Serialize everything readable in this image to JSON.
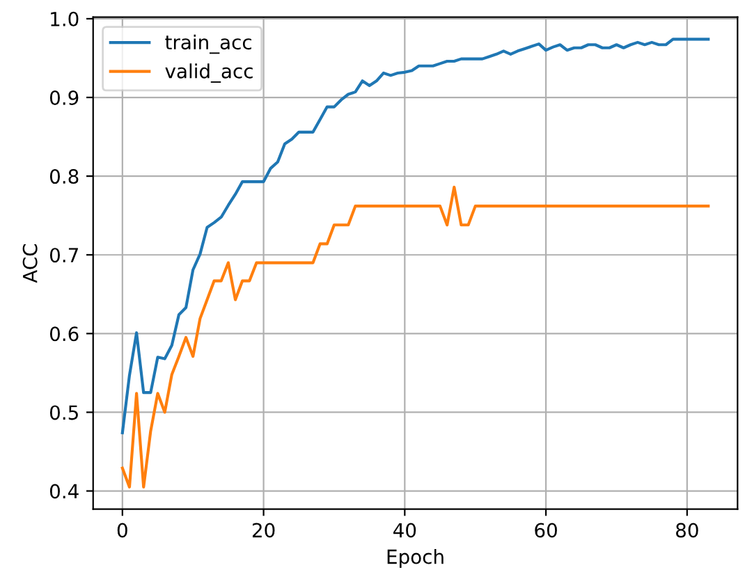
{
  "chart_data": {
    "type": "line",
    "xlabel": "Epoch",
    "ylabel": "ACC",
    "x": [
      0,
      1,
      2,
      3,
      4,
      5,
      6,
      7,
      8,
      9,
      10,
      11,
      12,
      13,
      14,
      15,
      16,
      17,
      18,
      19,
      20,
      21,
      22,
      23,
      24,
      25,
      26,
      27,
      28,
      29,
      30,
      31,
      32,
      33,
      34,
      35,
      36,
      37,
      38,
      39,
      40,
      41,
      42,
      43,
      44,
      45,
      46,
      47,
      48,
      49,
      50,
      51,
      52,
      53,
      54,
      55,
      56,
      57,
      58,
      59,
      60,
      61,
      62,
      63,
      64,
      65,
      66,
      67,
      68,
      69,
      70,
      71,
      72,
      73,
      74,
      75,
      76,
      77,
      78,
      79,
      80,
      81,
      82,
      83
    ],
    "series": [
      {
        "name": "train_acc",
        "color": "#1f77b4",
        "values": [
          0.474,
          0.547,
          0.601,
          0.525,
          0.525,
          0.57,
          0.568,
          0.585,
          0.624,
          0.633,
          0.681,
          0.701,
          0.735,
          0.741,
          0.748,
          0.763,
          0.777,
          0.793,
          0.793,
          0.793,
          0.793,
          0.81,
          0.818,
          0.841,
          0.847,
          0.856,
          0.856,
          0.856,
          0.872,
          0.888,
          0.888,
          0.897,
          0.904,
          0.907,
          0.921,
          0.915,
          0.921,
          0.931,
          0.928,
          0.931,
          0.932,
          0.934,
          0.94,
          0.94,
          0.94,
          0.943,
          0.946,
          0.946,
          0.949,
          0.949,
          0.949,
          0.949,
          0.952,
          0.955,
          0.959,
          0.955,
          0.959,
          0.962,
          0.965,
          0.968,
          0.96,
          0.964,
          0.967,
          0.96,
          0.963,
          0.963,
          0.967,
          0.967,
          0.963,
          0.963,
          0.967,
          0.963,
          0.967,
          0.97,
          0.967,
          0.97,
          0.967,
          0.967,
          0.974,
          0.974,
          0.974,
          0.974,
          0.974,
          0.974
        ]
      },
      {
        "name": "valid_acc",
        "color": "#ff7f0e",
        "values": [
          0.429,
          0.405,
          0.524,
          0.405,
          0.476,
          0.524,
          0.5,
          0.548,
          0.571,
          0.595,
          0.571,
          0.619,
          0.643,
          0.667,
          0.667,
          0.69,
          0.643,
          0.667,
          0.667,
          0.69,
          0.69,
          0.69,
          0.69,
          0.69,
          0.69,
          0.69,
          0.69,
          0.69,
          0.714,
          0.714,
          0.738,
          0.738,
          0.738,
          0.762,
          0.762,
          0.762,
          0.762,
          0.762,
          0.762,
          0.762,
          0.762,
          0.762,
          0.762,
          0.762,
          0.762,
          0.762,
          0.738,
          0.786,
          0.738,
          0.738,
          0.762,
          0.762,
          0.762,
          0.762,
          0.762,
          0.762,
          0.762,
          0.762,
          0.762,
          0.762,
          0.762,
          0.762,
          0.762,
          0.762,
          0.762,
          0.762,
          0.762,
          0.762,
          0.762,
          0.762,
          0.762,
          0.762,
          0.762,
          0.762,
          0.762,
          0.762,
          0.762,
          0.762,
          0.762,
          0.762,
          0.762,
          0.762,
          0.762,
          0.762
        ]
      }
    ],
    "xlim": [
      -4.15,
      87.15
    ],
    "xticks": [
      0,
      20,
      40,
      60,
      80
    ],
    "ylim": [
      0.377,
      1.002
    ],
    "yticks": [
      0.4,
      0.5,
      0.6,
      0.7,
      0.8,
      0.9,
      {
        "value": 1.0,
        "label": "1.0"
      }
    ],
    "grid": true,
    "legend": "top left",
    "marker": "none",
    "line_style": "solid"
  }
}
